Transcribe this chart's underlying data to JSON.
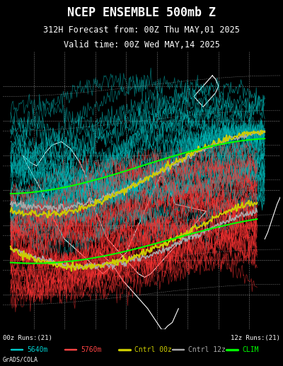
{
  "title_line1": "NCEP ENSEMBLE 500mb Z",
  "title_line2": "312H Forecast from: 00Z Thu MAY,01 2025",
  "title_line3": "Valid time: 00Z Wed MAY,14 2025",
  "bg_color": "#000000",
  "map_area_color": "#000000",
  "label_00z": "00z Runs:(21)",
  "label_12z": "12z Runs:(21)",
  "legend_items": [
    {
      "label": "5640m",
      "color": "#00CCCC",
      "lw": 1.5
    },
    {
      "label": "5760m",
      "color": "#FF4444",
      "lw": 1.5
    },
    {
      "label": "Cntrl 00z",
      "color": "#CCCC00",
      "lw": 2.0
    },
    {
      "label": "Cntrl 12z",
      "color": "#AAAAAA",
      "lw": 1.5
    },
    {
      "label": "CLIM",
      "color": "#00FF00",
      "lw": 2.0
    }
  ],
  "credit": "GrADS/COLA",
  "figsize": [
    4.0,
    5.18
  ],
  "dpi": 100
}
